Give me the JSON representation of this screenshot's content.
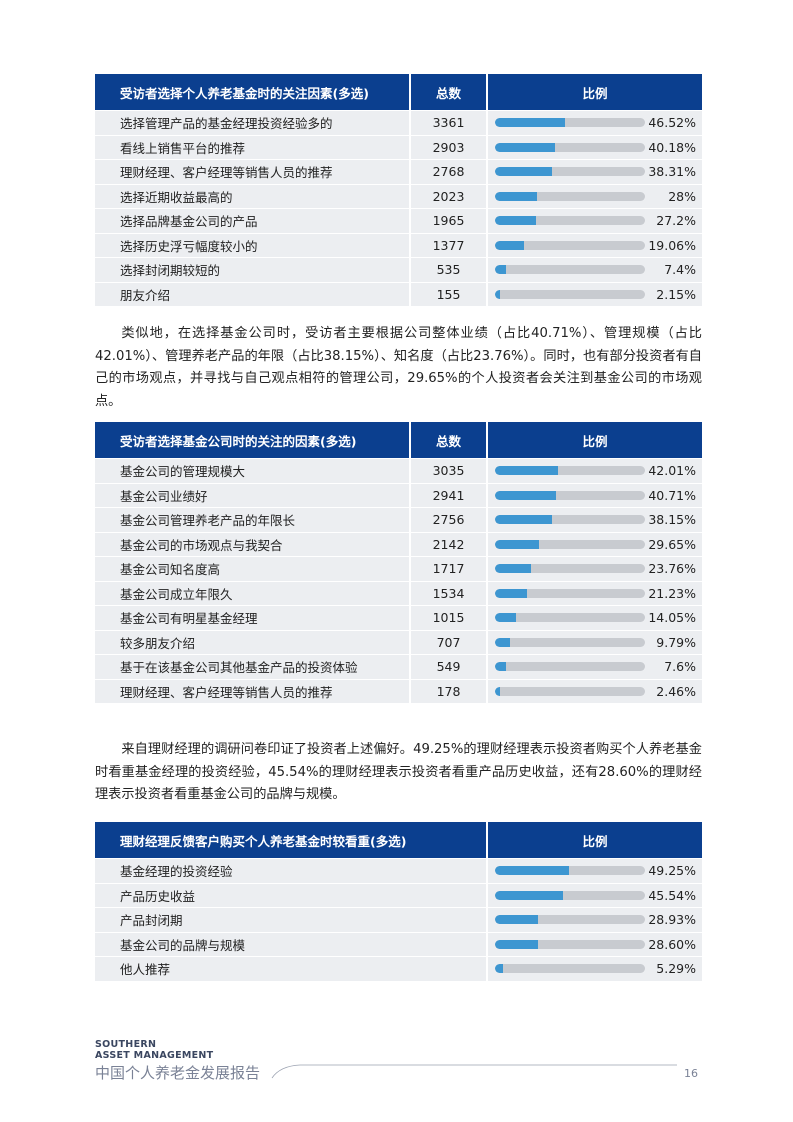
{
  "table1": {
    "headers": [
      "受访者选择个人养老基金时的关注因素(多选)",
      "总数",
      "比例"
    ],
    "rows": [
      {
        "label": "选择管理产品的基金经理投资经验多的",
        "count": "3361",
        "pct": "46.52%",
        "value": 46.52
      },
      {
        "label": "看线上销售平台的推荐",
        "count": "2903",
        "pct": "40.18%",
        "value": 40.18
      },
      {
        "label": "理财经理、客户经理等销售人员的推荐",
        "count": "2768",
        "pct": "38.31%",
        "value": 38.31
      },
      {
        "label": "选择近期收益最高的",
        "count": "2023",
        "pct": "28%",
        "value": 28
      },
      {
        "label": "选择品牌基金公司的产品",
        "count": "1965",
        "pct": "27.2%",
        "value": 27.2
      },
      {
        "label": "选择历史浮亏幅度较小的",
        "count": "1377",
        "pct": "19.06%",
        "value": 19.06
      },
      {
        "label": "选择封闭期较短的",
        "count": "535",
        "pct": "7.4%",
        "value": 7.4
      },
      {
        "label": "朋友介绍",
        "count": "155",
        "pct": "2.15%",
        "value": 2.15
      }
    ]
  },
  "para1": "类似地，在选择基金公司时，受访者主要根据公司整体业绩（占比40.71%）、管理规模（占比42.01%）、管理养老产品的年限（占比38.15%）、知名度（占比23.76%）。同时，也有部分投资者有自己的市场观点，并寻找与自己观点相符的管理公司，29.65%的个人投资者会关注到基金公司的市场观点。",
  "table2": {
    "headers": [
      "受访者选择基金公司时的关注的因素(多选)",
      "总数",
      "比例"
    ],
    "rows": [
      {
        "label": "基金公司的管理规模大",
        "count": "3035",
        "pct": "42.01%",
        "value": 42.01
      },
      {
        "label": "基金公司业绩好",
        "count": "2941",
        "pct": "40.71%",
        "value": 40.71
      },
      {
        "label": "基金公司管理养老产品的年限长",
        "count": "2756",
        "pct": "38.15%",
        "value": 38.15
      },
      {
        "label": "基金公司的市场观点与我契合",
        "count": "2142",
        "pct": "29.65%",
        "value": 29.65
      },
      {
        "label": "基金公司知名度高",
        "count": "1717",
        "pct": "23.76%",
        "value": 23.76
      },
      {
        "label": "基金公司成立年限久",
        "count": "1534",
        "pct": "21.23%",
        "value": 21.23
      },
      {
        "label": "基金公司有明星基金经理",
        "count": "1015",
        "pct": "14.05%",
        "value": 14.05
      },
      {
        "label": "较多朋友介绍",
        "count": "707",
        "pct": "9.79%",
        "value": 9.79
      },
      {
        "label": "基于在该基金公司其他基金产品的投资体验",
        "count": "549",
        "pct": "7.6%",
        "value": 7.6
      },
      {
        "label": "理财经理、客户经理等销售人员的推荐",
        "count": "178",
        "pct": "2.46%",
        "value": 2.46
      }
    ]
  },
  "para2": "来自理财经理的调研问卷印证了投资者上述偏好。49.25%的理财经理表示投资者购买个人养老基金时看重基金经理的投资经验，45.54%的理财经理表示投资者看重产品历史收益，还有28.60%的理财经理表示投资者看重基金公司的品牌与规模。",
  "table3": {
    "headers": [
      "理财经理反馈客户购买个人养老基金时较看重(多选)",
      "比例"
    ],
    "rows": [
      {
        "label": "基金经理的投资经验",
        "pct": "49.25%",
        "value": 49.25
      },
      {
        "label": "产品历史收益",
        "pct": "45.54%",
        "value": 45.54
      },
      {
        "label": "产品封闭期",
        "pct": "28.93%",
        "value": 28.93
      },
      {
        "label": "基金公司的品牌与规模",
        "pct": "28.60%",
        "value": 28.6
      },
      {
        "label": "他人推荐",
        "pct": "5.29%",
        "value": 5.29
      }
    ]
  },
  "footer": {
    "brand_line1": "SOUTHERN",
    "brand_line2": "ASSET MANAGEMENT",
    "title": "中国个人养老金发展报告",
    "page": "16"
  },
  "colors": {
    "header_bg": "#0b3f8f",
    "bar_fill": "#3d96d1",
    "bar_track": "#c8cbd0",
    "row_bg": "#eceef1"
  }
}
